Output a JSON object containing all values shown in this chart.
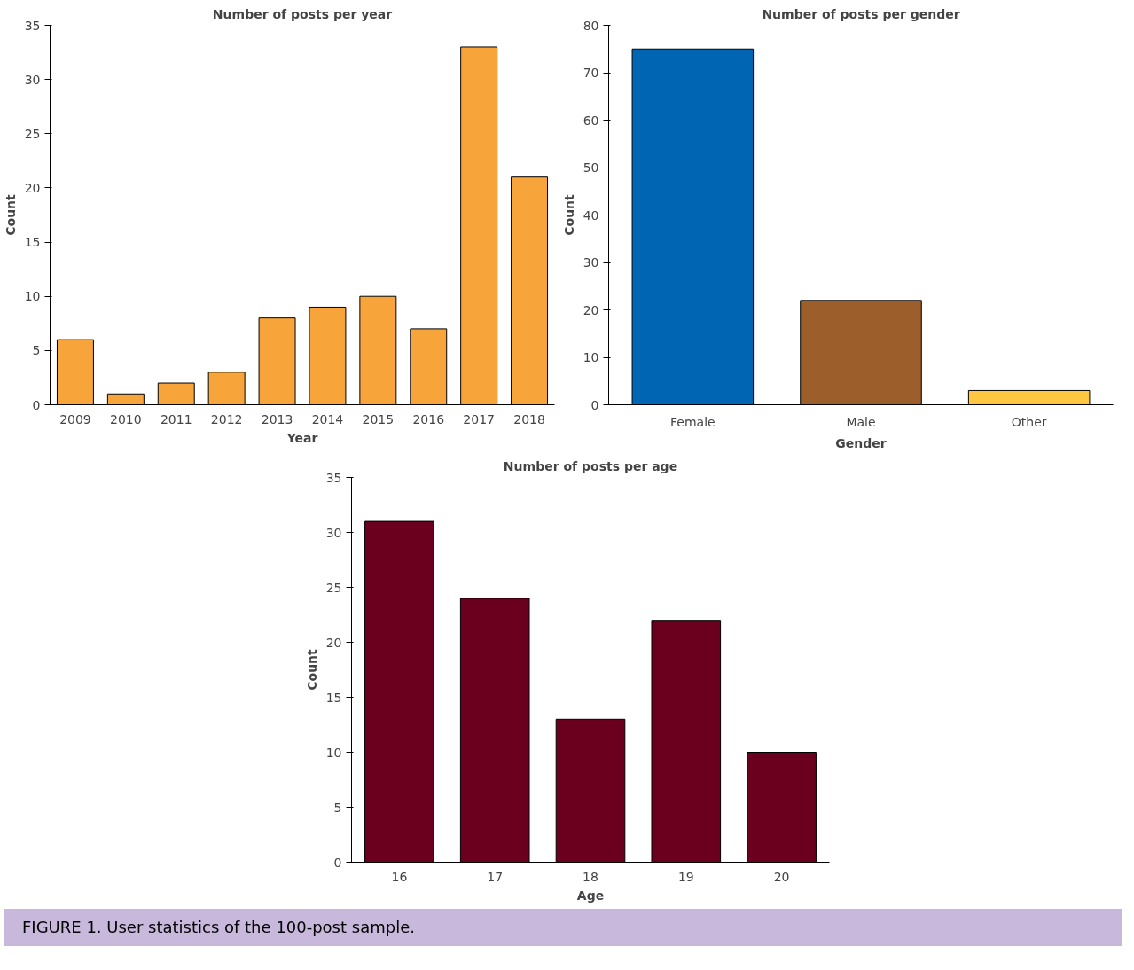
{
  "chart_data": [
    {
      "type": "bar",
      "title": "Number of posts per year",
      "xlabel": "Year",
      "ylabel": "Count",
      "categories": [
        "2009",
        "2010",
        "2011",
        "2012",
        "2013",
        "2014",
        "2015",
        "2016",
        "2017",
        "2018"
      ],
      "values": [
        6,
        1,
        2,
        3,
        8,
        9,
        10,
        7,
        33,
        21
      ],
      "color": "#f7a43b",
      "ylim": [
        0,
        35
      ],
      "yticks": [
        0,
        5,
        10,
        15,
        20,
        25,
        30,
        35
      ]
    },
    {
      "type": "bar",
      "title": "Number of posts per gender",
      "xlabel": "Gender",
      "ylabel": "Count",
      "categories": [
        "Female",
        "Male",
        "Other"
      ],
      "values": [
        75,
        22,
        3
      ],
      "colors": [
        "#0066b3",
        "#9c5e2b",
        "#fdc742"
      ],
      "ylim": [
        0,
        80
      ],
      "yticks": [
        0,
        10,
        20,
        30,
        40,
        50,
        60,
        70,
        80
      ]
    },
    {
      "type": "bar",
      "title": "Number of posts per age",
      "xlabel": "Age",
      "ylabel": "Count",
      "categories": [
        "16",
        "17",
        "18",
        "19",
        "20"
      ],
      "values": [
        31,
        24,
        13,
        22,
        10
      ],
      "color": "#6b001e",
      "ylim": [
        0,
        35
      ],
      "yticks": [
        0,
        5,
        10,
        15,
        20,
        25,
        30,
        35
      ],
      "annotations": [
        "FIGURE 1. User statistics of the 100-post sample."
      ]
    }
  ]
}
